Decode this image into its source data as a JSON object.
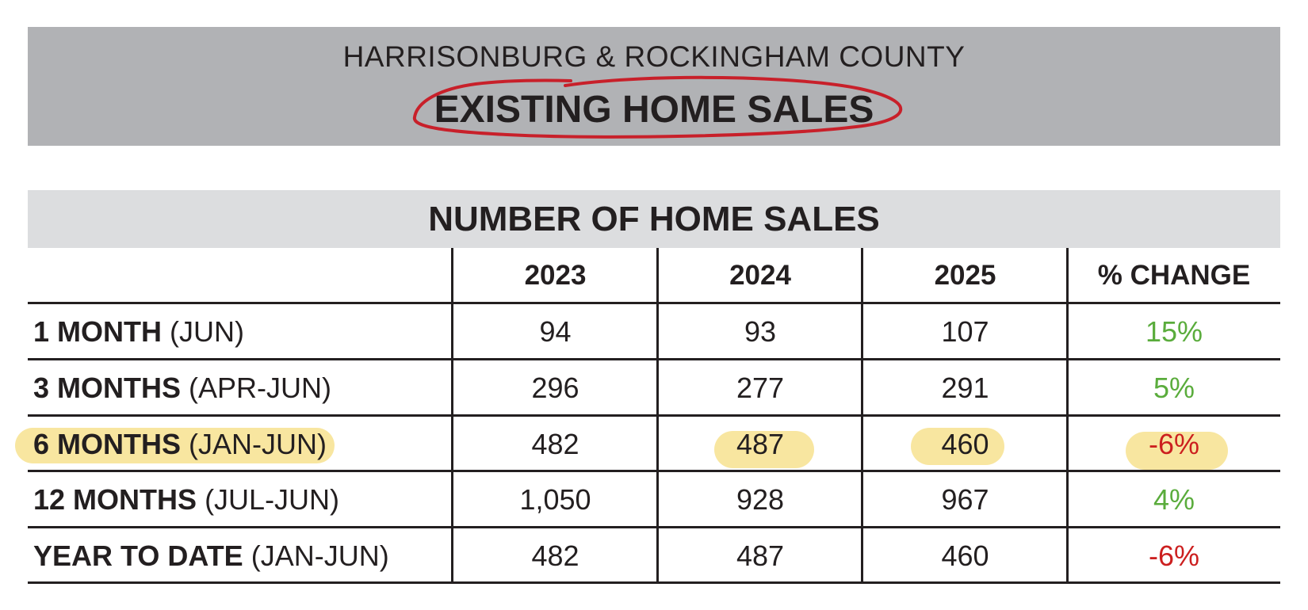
{
  "header": {
    "subtitle": "HARRISONBURG & ROCKINGHAM COUNTY",
    "title": "EXISTING HOME SALES"
  },
  "table": {
    "title": "NUMBER OF HOME SALES",
    "columns": [
      "2023",
      "2024",
      "2025",
      "% CHANGE"
    ],
    "rows": [
      {
        "label_bold": "1 MONTH",
        "label_rest": "(JUN)",
        "values": [
          "94",
          "93",
          "107"
        ],
        "change": "15%",
        "change_sign": "positive",
        "highlighted": false
      },
      {
        "label_bold": "3 MONTHS",
        "label_rest": "(APR-JUN)",
        "values": [
          "296",
          "277",
          "291"
        ],
        "change": "5%",
        "change_sign": "positive",
        "highlighted": false
      },
      {
        "label_bold": "6 MONTHS",
        "label_rest": "(JAN-JUN)",
        "values": [
          "482",
          "487",
          "460"
        ],
        "change": "-6%",
        "change_sign": "negative",
        "highlighted": true
      },
      {
        "label_bold": "12 MONTHS",
        "label_rest": "(JUL-JUN)",
        "values": [
          "1,050",
          "928",
          "967"
        ],
        "change": "4%",
        "change_sign": "positive",
        "highlighted": false
      },
      {
        "label_bold": "YEAR TO DATE",
        "label_rest": "(JAN-JUN)",
        "values": [
          "482",
          "487",
          "460"
        ],
        "change": "-6%",
        "change_sign": "negative",
        "highlighted": false
      }
    ]
  },
  "colors": {
    "banner": "#b1b2b5",
    "section_band": "#dcdddf",
    "positive": "#5aac3c",
    "negative": "#cc1f1f",
    "highlight": "#f8e6a0",
    "annotation": "#c8202a"
  },
  "annotations": {
    "title_circled": true,
    "highlighted_cells": [
      "6 MONTHS label",
      "2024",
      "2025",
      "% CHANGE"
    ]
  }
}
